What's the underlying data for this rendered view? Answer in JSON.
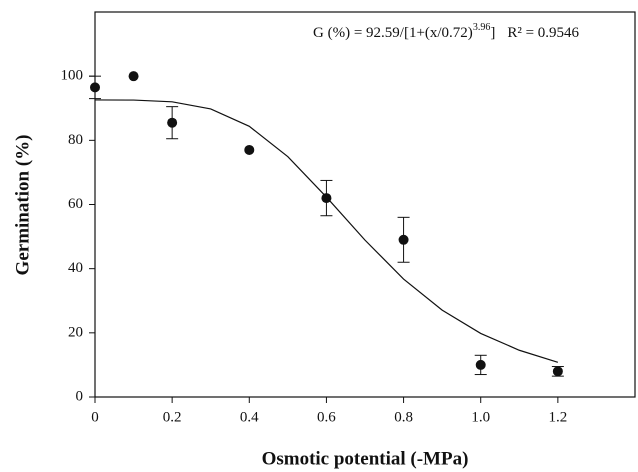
{
  "chart_data": {
    "type": "scatter",
    "x_label": "Osmotic potential (-MPa)",
    "y_label": "Germination (%)",
    "annotation": {
      "equation": "G (%) = 92.59/[1+(x/0.72)",
      "exponent": "3.96",
      "close": "]",
      "r2": "R² = 0.9546"
    },
    "xlim": [
      0,
      1.4
    ],
    "ylim": [
      0,
      120
    ],
    "xticks": [
      0,
      0.2,
      0.4,
      0.6,
      0.8,
      {
        "value": 1,
        "label": "1.0"
      },
      1.2
    ],
    "yticks": [
      0,
      20,
      40,
      60,
      80,
      100
    ],
    "color": "#111111",
    "points": {
      "x": [
        0,
        0.1,
        0.2,
        0.4,
        0.6,
        0.8,
        1,
        1.2
      ],
      "values": [
        96.5,
        100,
        85.5,
        77,
        62,
        49,
        10,
        8
      ],
      "errors": [
        3.5,
        null,
        5,
        null,
        5.5,
        7,
        3,
        1.5
      ]
    },
    "fit": {
      "x": [
        0,
        0.1,
        0.2,
        0.3,
        0.4,
        0.5,
        0.6,
        0.7,
        0.8,
        0.9,
        1,
        1.1,
        1.2
      ],
      "values": [
        92.59,
        92.55,
        92.01,
        89.79,
        84.37,
        74.91,
        62.31,
        48.89,
        36.77,
        27.07,
        19.81,
        14.57,
        10.82
      ]
    }
  }
}
